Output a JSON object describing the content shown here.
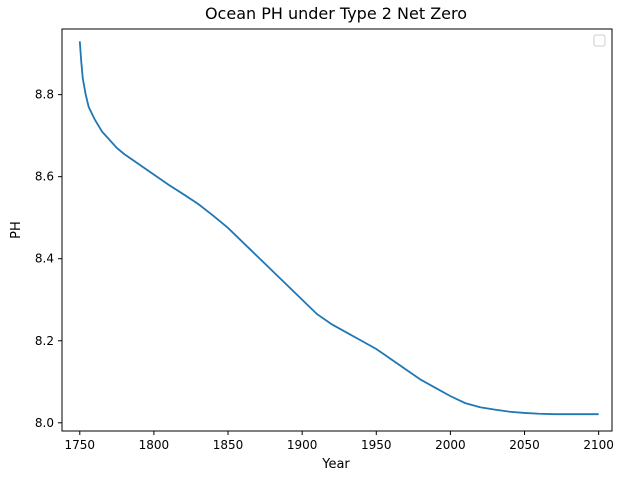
{
  "chart_data": {
    "type": "line",
    "title": "Ocean PH under Type 2 Net Zero",
    "xlabel": "Year",
    "ylabel": "PH",
    "xlim": [
      1738,
      2109
    ],
    "ylim": [
      7.98,
      8.96
    ],
    "x_ticks": [
      1750,
      1800,
      1850,
      1900,
      1950,
      2000,
      2050,
      2100
    ],
    "y_ticks": [
      8.0,
      8.2,
      8.4,
      8.6,
      8.8
    ],
    "y_tick_labels": [
      "8.0",
      "8.2",
      "8.4",
      "8.6",
      "8.8"
    ],
    "grid": false,
    "legend": "top-right",
    "line_color": "#1f77b4",
    "series": [
      {
        "x": [
          1750,
          1751,
          1752,
          1754,
          1756,
          1760,
          1765,
          1770,
          1775,
          1780,
          1790,
          1800,
          1810,
          1820,
          1830,
          1840,
          1850,
          1860,
          1870,
          1880,
          1890,
          1900,
          1910,
          1920,
          1930,
          1940,
          1950,
          1960,
          1970,
          1980,
          1990,
          2000,
          2010,
          2020,
          2030,
          2040,
          2050,
          2060,
          2070,
          2080,
          2090,
          2100
        ],
        "y": [
          8.93,
          8.88,
          8.84,
          8.8,
          8.77,
          8.74,
          8.71,
          8.69,
          8.67,
          8.655,
          8.63,
          8.605,
          8.58,
          8.557,
          8.533,
          8.505,
          8.475,
          8.44,
          8.405,
          8.37,
          8.335,
          8.3,
          8.265,
          8.24,
          8.22,
          8.2,
          8.18,
          8.155,
          8.13,
          8.105,
          8.085,
          8.065,
          8.048,
          8.038,
          8.032,
          8.027,
          8.024,
          8.022,
          8.021,
          8.021,
          8.021,
          8.021
        ]
      }
    ]
  }
}
